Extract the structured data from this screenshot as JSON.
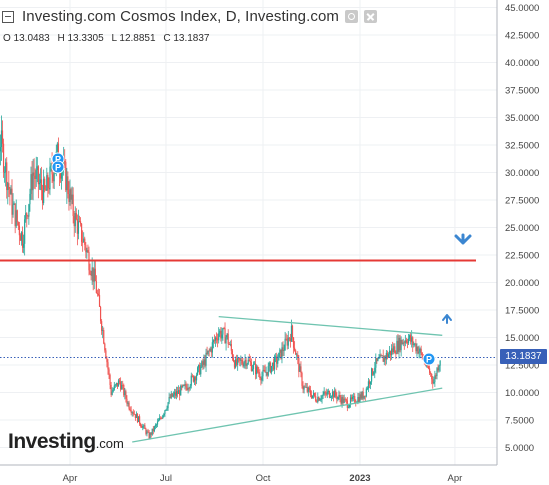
{
  "header": {
    "title": "Investing.com Cosmos Index, D, Investing.com",
    "ohlc": {
      "open": "O 13.0483",
      "high": "H 13.3305",
      "low": "L 12.8851",
      "close": "C 13.1837"
    }
  },
  "current_price_tag": "13.1837",
  "watermark": {
    "brand": "Investing",
    "domain": ".com"
  },
  "colors": {
    "up": "#26a69a",
    "down": "#ef5350",
    "resistance": "#e53935",
    "trendline": "#6fc4b0",
    "price_line": "#3860b8",
    "arrow": "#3b86d1",
    "marker": "#2196f3"
  },
  "icons": [
    "collapse-icon",
    "settings-icon",
    "close-icon",
    "down-arrow-icon",
    "up-arrow-icon",
    "pivot-marker-icon"
  ],
  "markers": [
    {
      "label": "P"
    },
    {
      "label": "P"
    },
    {
      "label": "P"
    }
  ],
  "chart_data": {
    "type": "candlestick",
    "y_ticks": [
      "45.0000",
      "42.5000",
      "40.0000",
      "37.5000",
      "35.0000",
      "32.5000",
      "30.0000",
      "27.5000",
      "25.0000",
      "22.5000",
      "20.0000",
      "17.5000",
      "15.0000",
      "12.5000",
      "10.0000",
      "7.5000",
      "5.0000"
    ],
    "x_ticks": [
      "Apr",
      "Jul",
      "Oct",
      "2023",
      "Apr"
    ],
    "ylim": [
      3.5,
      45
    ],
    "xlim": [
      "2022-01-01",
      "2023-05-01"
    ],
    "current_price": 13.1837,
    "resistance_level": 22.0,
    "trendlines": [
      {
        "name": "upper",
        "from": [
          "2022-08-20",
          16.9
        ],
        "to": [
          "2023-03-20",
          15.2
        ]
      },
      {
        "name": "lower",
        "from": [
          "2022-05-30",
          5.5
        ],
        "to": [
          "2023-03-20",
          10.4
        ]
      }
    ],
    "price_path": [
      [
        "2022-01-01",
        36.5
      ],
      [
        "2022-01-12",
        29.0
      ],
      [
        "2022-01-25",
        33.0
      ],
      [
        "2022-02-05",
        27.0
      ],
      [
        "2022-02-15",
        24.0
      ],
      [
        "2022-02-25",
        30.0
      ],
      [
        "2022-03-08",
        28.0
      ],
      [
        "2022-03-20",
        31.5
      ],
      [
        "2022-03-28",
        29.5
      ],
      [
        "2022-04-05",
        26.0
      ],
      [
        "2022-04-15",
        23.5
      ],
      [
        "2022-04-25",
        20.0
      ],
      [
        "2022-05-03",
        15.0
      ],
      [
        "2022-05-10",
        10.0
      ],
      [
        "2022-05-18",
        11.0
      ],
      [
        "2022-05-26",
        9.0
      ],
      [
        "2022-06-05",
        7.5
      ],
      [
        "2022-06-15",
        6.0
      ],
      [
        "2022-06-25",
        7.5
      ],
      [
        "2022-07-05",
        9.5
      ],
      [
        "2022-07-20",
        10.5
      ],
      [
        "2022-08-05",
        12.5
      ],
      [
        "2022-08-20",
        15.5
      ],
      [
        "2022-08-28",
        15.0
      ],
      [
        "2022-09-05",
        12.5
      ],
      [
        "2022-09-15",
        13.0
      ],
      [
        "2022-09-30",
        11.5
      ],
      [
        "2022-10-15",
        13.0
      ],
      [
        "2022-10-28",
        15.5
      ],
      [
        "2022-11-08",
        10.5
      ],
      [
        "2022-11-20",
        9.5
      ],
      [
        "2022-12-05",
        10.0
      ],
      [
        "2022-12-20",
        9.0
      ],
      [
        "2023-01-05",
        9.8
      ],
      [
        "2023-01-15",
        12.5
      ],
      [
        "2023-01-28",
        13.5
      ],
      [
        "2023-02-08",
        14.5
      ],
      [
        "2023-02-15",
        15.0
      ],
      [
        "2023-02-25",
        14.0
      ],
      [
        "2023-03-05",
        12.5
      ],
      [
        "2023-03-12",
        11.0
      ],
      [
        "2023-03-18",
        13.2
      ]
    ]
  }
}
